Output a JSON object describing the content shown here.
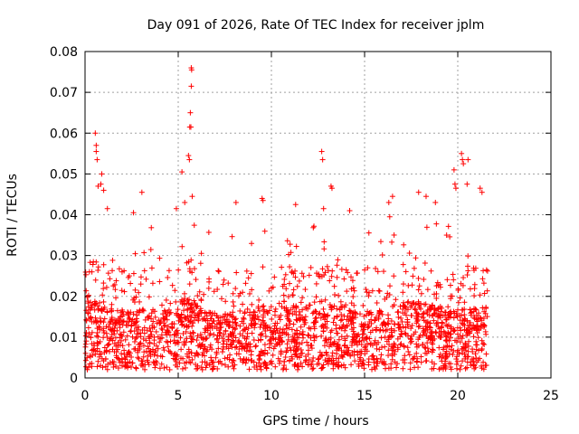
{
  "chart_data": {
    "type": "scatter",
    "title": "Day 091 of 2026, Rate Of TEC Index for receiver jplm",
    "xlabel": "GPS time / hours",
    "ylabel": "ROTI / TECUs",
    "xlim": [
      0,
      25
    ],
    "ylim": [
      0,
      0.08
    ],
    "x_ticks": [
      0,
      5,
      10,
      15,
      20,
      25
    ],
    "x_tick_labels": [
      "0",
      "5",
      "10",
      "15",
      "20",
      "25"
    ],
    "y_ticks": [
      0,
      0.01,
      0.02,
      0.03,
      0.04,
      0.05,
      0.06,
      0.07,
      0.08
    ],
    "y_tick_labels": [
      "0",
      "0.01",
      "0.02",
      "0.03",
      "0.04",
      "0.05",
      "0.06",
      "0.07",
      "0.08"
    ],
    "grid": true,
    "marker": "+",
    "marker_color": "#ff0000",
    "series": [
      {
        "name": "ROTI",
        "x": [
          0.05,
          0.55,
          0.6,
          0.6,
          0.65,
          0.7,
          0.85,
          0.9,
          1.0,
          1.2,
          2.6,
          3.05,
          4.9,
          5.2,
          5.35,
          5.55,
          5.6,
          5.62,
          5.65,
          5.68,
          5.7,
          5.7,
          5.72,
          5.75,
          8.1,
          9.5,
          9.55,
          11.3,
          12.7,
          12.75,
          12.8,
          13.2,
          13.25,
          14.2,
          16.3,
          16.35,
          16.5,
          17.9,
          18.3,
          18.8,
          19.8,
          19.85,
          19.9,
          20.2,
          20.25,
          20.3,
          20.5,
          20.55,
          21.2,
          21.3
        ],
        "y": [
          0.0253,
          0.06,
          0.057,
          0.0555,
          0.0535,
          0.047,
          0.0475,
          0.05,
          0.046,
          0.0415,
          0.0405,
          0.0455,
          0.0415,
          0.0505,
          0.043,
          0.0545,
          0.0535,
          0.0615,
          0.065,
          0.0615,
          0.0715,
          0.076,
          0.0755,
          0.0445,
          0.043,
          0.044,
          0.0435,
          0.0425,
          0.0555,
          0.0535,
          0.0415,
          0.047,
          0.0465,
          0.041,
          0.043,
          0.0395,
          0.0445,
          0.0455,
          0.0445,
          0.043,
          0.051,
          0.0475,
          0.0465,
          0.055,
          0.0535,
          0.0525,
          0.0475,
          0.0535,
          0.0465,
          0.0455
        ]
      }
    ]
  }
}
